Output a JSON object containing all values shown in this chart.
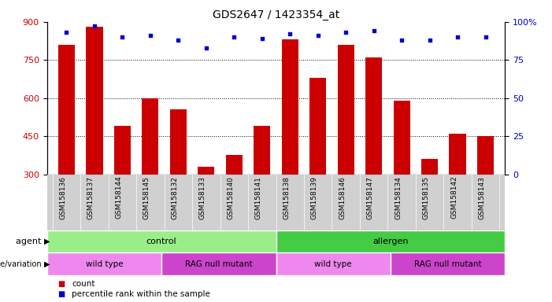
{
  "title": "GDS2647 / 1423354_at",
  "samples": [
    "GSM158136",
    "GSM158137",
    "GSM158144",
    "GSM158145",
    "GSM158132",
    "GSM158133",
    "GSM158140",
    "GSM158141",
    "GSM158138",
    "GSM158139",
    "GSM158146",
    "GSM158147",
    "GSM158134",
    "GSM158135",
    "GSM158142",
    "GSM158143"
  ],
  "counts": [
    810,
    880,
    490,
    600,
    555,
    330,
    375,
    490,
    830,
    680,
    810,
    760,
    590,
    360,
    460,
    450
  ],
  "percentile": [
    93,
    97,
    90,
    91,
    88,
    83,
    90,
    89,
    92,
    91,
    93,
    94,
    88,
    88,
    90,
    90
  ],
  "ymin": 300,
  "ymax": 900,
  "yticks": [
    300,
    450,
    600,
    750,
    900
  ],
  "y2ticks": [
    0,
    25,
    50,
    75,
    100
  ],
  "bar_color": "#cc0000",
  "dot_color": "#0000cc",
  "agent_groups": [
    {
      "label": "control",
      "start": 0,
      "end": 8,
      "color": "#99ee88"
    },
    {
      "label": "allergen",
      "start": 8,
      "end": 16,
      "color": "#44cc44"
    }
  ],
  "genotype_groups": [
    {
      "label": "wild type",
      "start": 0,
      "end": 4,
      "color": "#ee88ee"
    },
    {
      "label": "RAG null mutant",
      "start": 4,
      "end": 8,
      "color": "#cc44cc"
    },
    {
      "label": "wild type",
      "start": 8,
      "end": 12,
      "color": "#ee88ee"
    },
    {
      "label": "RAG null mutant",
      "start": 12,
      "end": 16,
      "color": "#cc44cc"
    }
  ],
  "xlabel_agent": "agent",
  "xlabel_genotype": "genotype/variation",
  "legend_count_color": "#cc0000",
  "legend_dot_color": "#0000cc",
  "gridline_values": [
    450,
    600,
    750
  ],
  "dot_size": 12
}
